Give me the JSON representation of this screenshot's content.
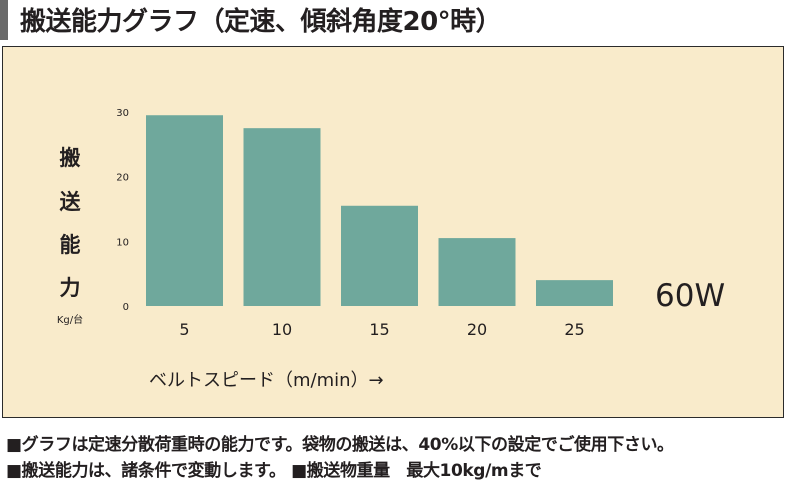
{
  "page": {
    "title": "搬送能力グラフ（定速、傾斜角度20°時）"
  },
  "chart_data": {
    "type": "bar",
    "categories": [
      "5",
      "10",
      "15",
      "20",
      "25"
    ],
    "values": [
      29.5,
      27.5,
      15.5,
      10.5,
      4
    ],
    "ylim": [
      0,
      30
    ],
    "yticks": [
      "0",
      "10",
      "20",
      "30"
    ],
    "ylabel_chars": [
      "搬",
      "送",
      "能",
      "力"
    ],
    "ylabel_unit": "Kg/台",
    "xlabel": "ベルトスピード（m/min）→",
    "annotation": "60W",
    "grid": false,
    "bar_color": "#6fa89c",
    "background_color": "#f9ebcb"
  },
  "notes": {
    "line1": "■グラフは定速分散荷重時の能力です。袋物の搬送は、40%以下の設定でご使用下さい。",
    "line2": "■搬送能力は、諸条件で変動します。 ■搬送物重量　最大10kg/mまで"
  }
}
